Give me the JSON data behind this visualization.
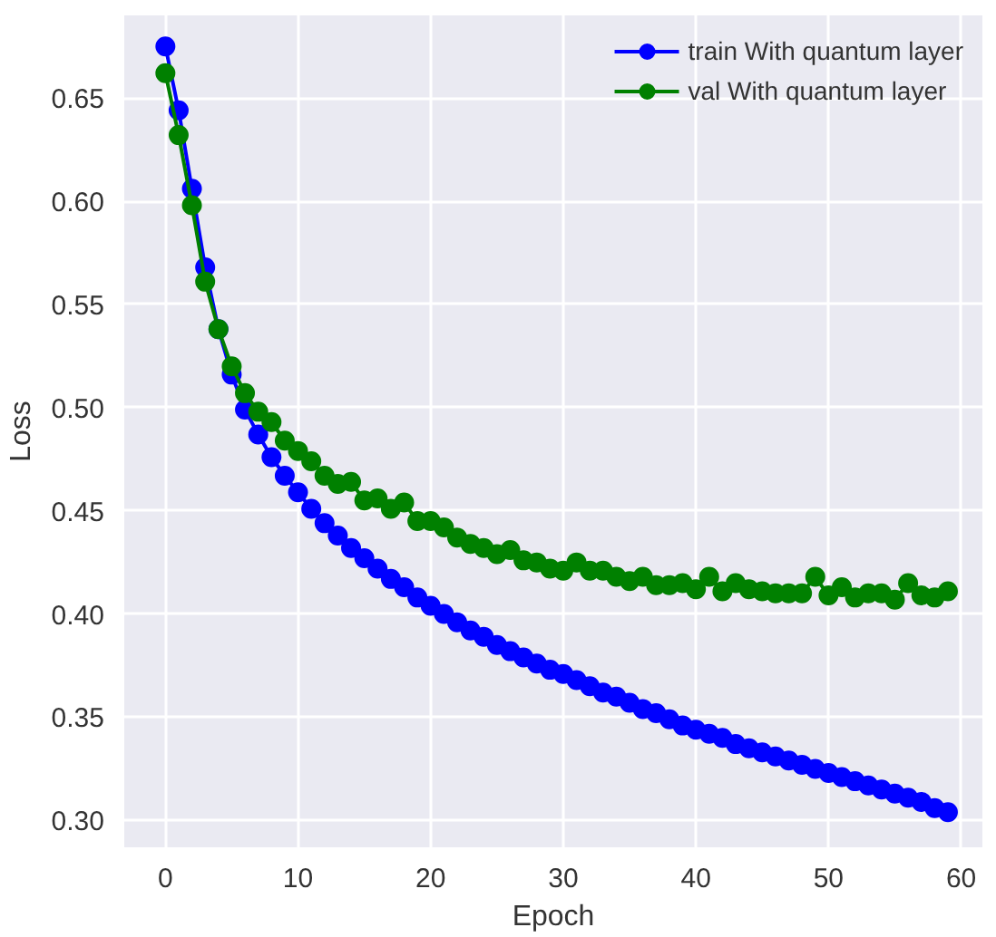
{
  "chart_data": {
    "type": "line",
    "xlabel": "Epoch",
    "ylabel": "Loss",
    "x": [
      0,
      1,
      2,
      3,
      4,
      5,
      6,
      7,
      8,
      9,
      10,
      11,
      12,
      13,
      14,
      15,
      16,
      17,
      18,
      19,
      20,
      21,
      22,
      23,
      24,
      25,
      26,
      27,
      28,
      29,
      30,
      31,
      32,
      33,
      34,
      35,
      36,
      37,
      38,
      39,
      40,
      41,
      42,
      43,
      44,
      45,
      46,
      47,
      48,
      49,
      50,
      51,
      52,
      53,
      54,
      55,
      56,
      57,
      58,
      59
    ],
    "series": [
      {
        "name": "train With quantum layer",
        "color": "#0000ff",
        "values": [
          0.675,
          0.644,
          0.606,
          0.568,
          0.538,
          0.516,
          0.499,
          0.487,
          0.476,
          0.467,
          0.459,
          0.451,
          0.444,
          0.438,
          0.432,
          0.427,
          0.422,
          0.417,
          0.413,
          0.408,
          0.404,
          0.4,
          0.396,
          0.392,
          0.389,
          0.385,
          0.382,
          0.379,
          0.376,
          0.373,
          0.371,
          0.368,
          0.365,
          0.362,
          0.36,
          0.357,
          0.354,
          0.352,
          0.349,
          0.346,
          0.344,
          0.342,
          0.34,
          0.337,
          0.335,
          0.333,
          0.331,
          0.329,
          0.327,
          0.325,
          0.323,
          0.321,
          0.319,
          0.317,
          0.315,
          0.313,
          0.311,
          0.309,
          0.306,
          0.304
        ]
      },
      {
        "name": "val With quantum layer",
        "color": "#008000",
        "values": [
          0.662,
          0.632,
          0.598,
          0.561,
          0.538,
          0.52,
          0.507,
          0.498,
          0.493,
          0.484,
          0.479,
          0.474,
          0.467,
          0.463,
          0.464,
          0.455,
          0.456,
          0.451,
          0.454,
          0.445,
          0.445,
          0.442,
          0.437,
          0.434,
          0.432,
          0.429,
          0.431,
          0.426,
          0.425,
          0.422,
          0.421,
          0.425,
          0.421,
          0.421,
          0.418,
          0.416,
          0.418,
          0.414,
          0.414,
          0.415,
          0.412,
          0.418,
          0.411,
          0.415,
          0.412,
          0.411,
          0.41,
          0.41,
          0.41,
          0.418,
          0.409,
          0.413,
          0.408,
          0.41,
          0.41,
          0.407,
          0.415,
          0.409,
          0.408,
          0.411
        ]
      }
    ],
    "xlim": [
      -3.1,
      61.6
    ],
    "ylim": [
      0.287,
      0.69
    ],
    "xticks": [
      0,
      10,
      20,
      30,
      40,
      50,
      60
    ],
    "yticks": [
      {
        "value": 0.3,
        "label": "0.30"
      },
      {
        "value": 0.35,
        "label": "0.35"
      },
      {
        "value": 0.4,
        "label": "0.40"
      },
      {
        "value": 0.45,
        "label": "0.45"
      },
      {
        "value": 0.5,
        "label": "0.50"
      },
      {
        "value": 0.55,
        "label": "0.55"
      },
      {
        "value": 0.6,
        "label": "0.60"
      },
      {
        "value": 0.65,
        "label": "0.65"
      }
    ],
    "grid": true,
    "legend": "top right",
    "marker": "circle",
    "line_style": "solid"
  }
}
